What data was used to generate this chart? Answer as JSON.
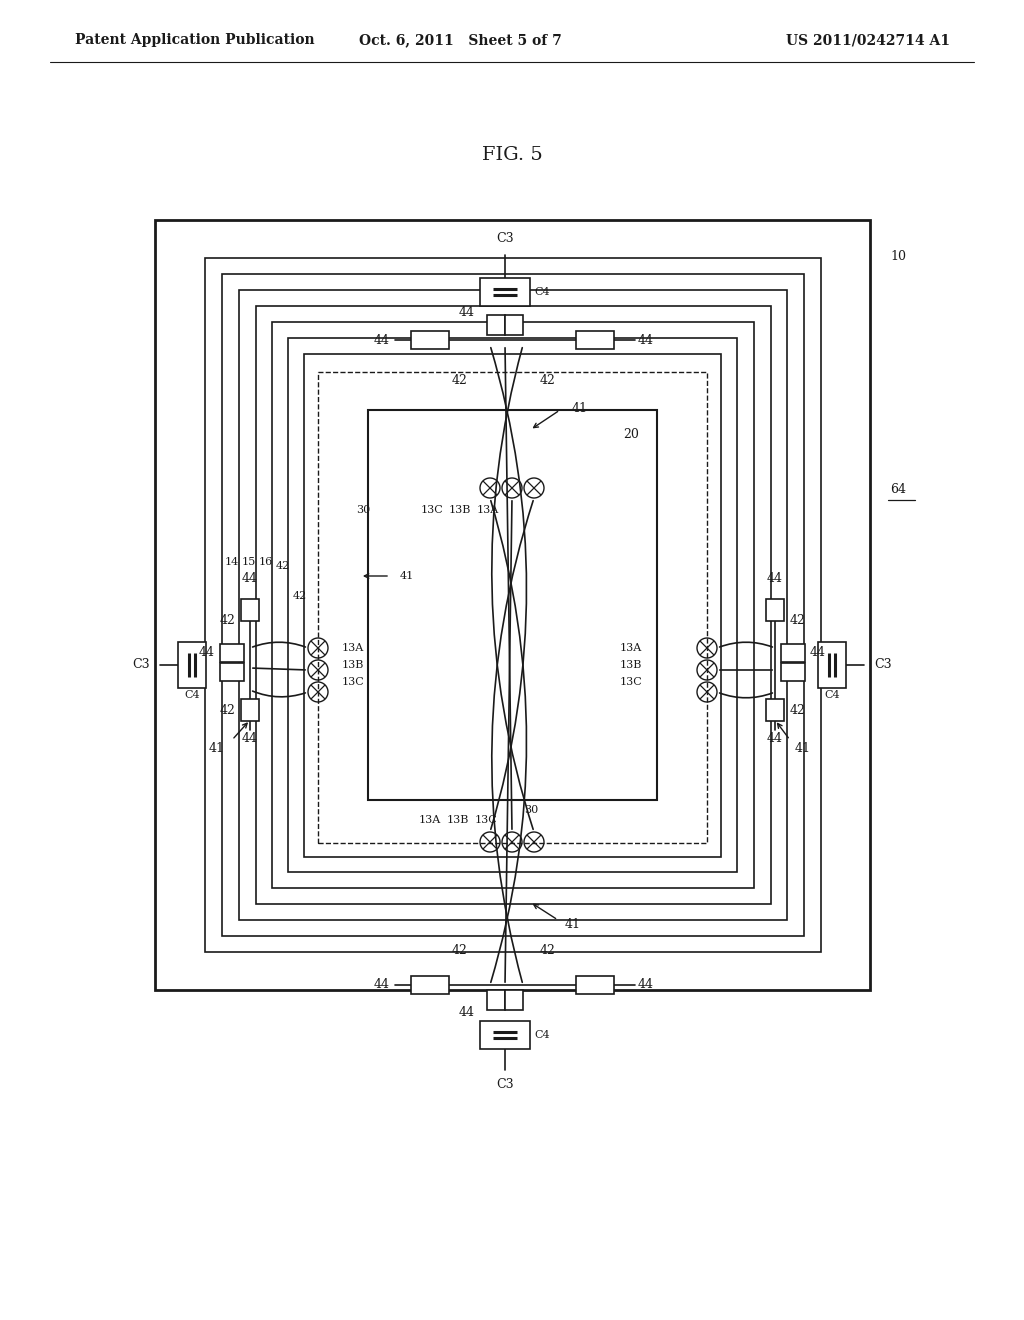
{
  "title": "FIG. 5",
  "header_left": "Patent Application Publication",
  "header_mid": "Oct. 6, 2011   Sheet 5 of 7",
  "header_right": "US 2011/0242714 A1",
  "bg_color": "#ffffff",
  "lc": "#1a1a1a",
  "fs_header": 10,
  "fs_title": 14,
  "fs_label": 9,
  "fs_small": 8
}
